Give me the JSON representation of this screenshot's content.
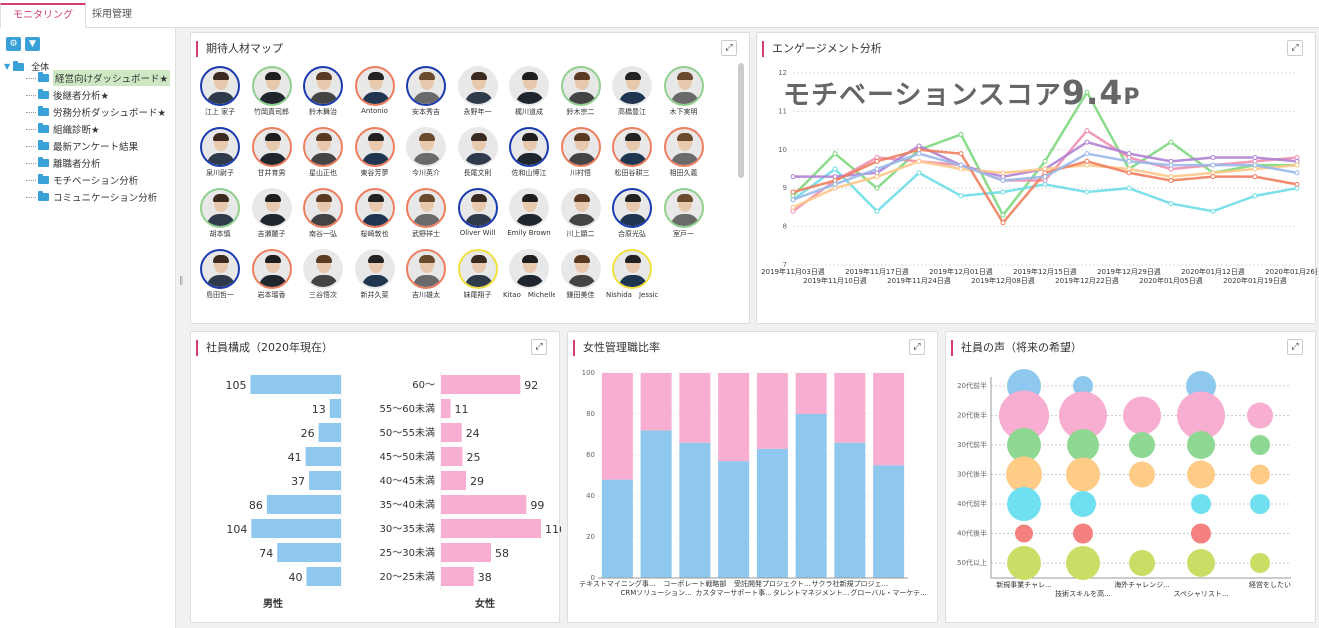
{
  "tabs": [
    "モニタリング",
    "採用管理"
  ],
  "toolbar": {
    "settings_icon": "gear-icon",
    "filter_icon": "filter-icon"
  },
  "tree": {
    "root": "全体",
    "items": [
      "経営向けダッシュボード★",
      "後継者分析★",
      "労務分析ダッシュボード★",
      "組織診断★",
      "最新アンケート結果",
      "離職者分析",
      "モチベーション分析",
      "コミュニケーション分析"
    ]
  },
  "talent_map": {
    "title": "期待人材マップ",
    "people": [
      {
        "name": "江上 家子",
        "ring": "#1a3ab0"
      },
      {
        "name": "竹岡真司郎",
        "ring": "#8fd08f"
      },
      {
        "name": "鈴木舞治",
        "ring": "#1a3ab0"
      },
      {
        "name": "Antonio",
        "ring": "#ee7e5e"
      },
      {
        "name": "安本秀吉",
        "ring": "#1a3ab0"
      },
      {
        "name": "永野年一",
        "ring": "#ffffff"
      },
      {
        "name": "梶川道成",
        "ring": "#ffffff"
      },
      {
        "name": "鈴木宗二",
        "ring": "#8fd08f"
      },
      {
        "name": "高橋豊江",
        "ring": "#ffffff"
      },
      {
        "name": "木下実明",
        "ring": "#8fd08f"
      },
      {
        "name": "泉川尉子",
        "ring": "#1a3ab0"
      },
      {
        "name": "甘井育男",
        "ring": "#ee7e5e"
      },
      {
        "name": "星山正也",
        "ring": "#ee7e5e"
      },
      {
        "name": "東谷芳夢",
        "ring": "#ee7e5e"
      },
      {
        "name": "今川英介",
        "ring": "#ffffff"
      },
      {
        "name": "長尾文則",
        "ring": "#ffffff"
      },
      {
        "name": "佐和山博江",
        "ring": "#1a3ab0"
      },
      {
        "name": "川村悟",
        "ring": "#ee7e5e"
      },
      {
        "name": "松田谷耕三",
        "ring": "#ee7e5e"
      },
      {
        "name": "相田久義",
        "ring": "#ee7e5e"
      },
      {
        "name": "胡本慎",
        "ring": "#8fd08f"
      },
      {
        "name": "吉瀬麓子",
        "ring": "#ffffff"
      },
      {
        "name": "南谷一弘",
        "ring": "#ee7e5e"
      },
      {
        "name": "桜崎敦也",
        "ring": "#ee7e5e"
      },
      {
        "name": "武野祥士",
        "ring": "#ee7e5e"
      },
      {
        "name": "Oliver Will",
        "ring": "#1a3ab0"
      },
      {
        "name": "Emily Brown",
        "ring": "#ffffff"
      },
      {
        "name": "川上顕二",
        "ring": "#ffffff"
      },
      {
        "name": "合原光弘",
        "ring": "#1a3ab0"
      },
      {
        "name": "室戸一",
        "ring": "#8fd08f"
      },
      {
        "name": "島田哲一",
        "ring": "#1a3ab0"
      },
      {
        "name": "岩本瑠香",
        "ring": "#ee7e5e"
      },
      {
        "name": "三谷悟次",
        "ring": "#ffffff"
      },
      {
        "name": "新井久菜",
        "ring": "#ffffff"
      },
      {
        "name": "吉川雄太",
        "ring": "#ee7e5e"
      },
      {
        "name": "妹尾翔子",
        "ring": "#f0e040"
      },
      {
        "name": "Kitao　Michelle",
        "ring": "#ffffff"
      },
      {
        "name": "鎌田美佳",
        "ring": "#ffffff"
      },
      {
        "name": "Nishida　Jessica",
        "ring": "#f0e040"
      }
    ]
  },
  "engagement": {
    "title": "エンゲージメント分析",
    "score_label": "モチベーションスコア",
    "score_value": "9.4",
    "score_unit": "P"
  },
  "composition": {
    "title": "社員構成（2020年現在）",
    "male_label": "男性",
    "female_label": "女性"
  },
  "female_mgmt": {
    "title": "女性管理職比率"
  },
  "voices": {
    "title": "社員の声（将来の希望）"
  },
  "chart_data": [
    {
      "type": "line",
      "title": "エンゲージメント分析",
      "x": [
        "2019年11月03日週",
        "2019年11月10日週",
        "2019年11月17日週",
        "2019年11月24日週",
        "2019年12月01日週",
        "2019年12月08日週",
        "2019年12月15日週",
        "2019年12月22日週",
        "2019年12月29日週",
        "2020年01月05日週",
        "2020年01月12日週",
        "2020年01月19日週",
        "2020年01月26日週"
      ],
      "ylim": [
        7,
        12
      ],
      "yticks": [
        7,
        8,
        9,
        10,
        11,
        12
      ],
      "series": [
        {
          "color": "#7dd87d",
          "values": [
            8.8,
            9.9,
            9.0,
            10.0,
            10.4,
            8.3,
            9.7,
            11.5,
            9.5,
            10.2,
            9.4,
            9.6,
            9.6
          ]
        },
        {
          "color": "#f08fb0",
          "values": [
            8.4,
            9.2,
            9.8,
            9.7,
            9.6,
            9.2,
            9.2,
            10.5,
            9.8,
            9.5,
            9.6,
            9.7,
            9.8
          ]
        },
        {
          "color": "#6edde8",
          "values": [
            8.7,
            9.5,
            8.4,
            9.4,
            8.8,
            8.9,
            9.1,
            8.9,
            9.0,
            8.6,
            8.4,
            8.8,
            9.0
          ]
        },
        {
          "color": "#b082d4",
          "values": [
            9.3,
            9.3,
            9.4,
            10.1,
            9.6,
            9.3,
            9.5,
            10.2,
            9.9,
            9.7,
            9.8,
            9.8,
            9.7
          ]
        },
        {
          "color": "#ffc888",
          "values": [
            8.5,
            9.0,
            9.3,
            9.7,
            9.5,
            9.4,
            9.5,
            9.6,
            9.5,
            9.3,
            9.4,
            9.5,
            9.6
          ]
        },
        {
          "color": "#ee7e5e",
          "values": [
            8.9,
            9.2,
            9.7,
            10.0,
            9.9,
            8.1,
            9.4,
            9.7,
            9.4,
            9.2,
            9.3,
            9.3,
            9.1
          ]
        },
        {
          "color": "#9ab8e8",
          "values": [
            8.7,
            9.1,
            9.5,
            9.9,
            9.6,
            9.2,
            9.3,
            9.9,
            9.7,
            9.6,
            9.6,
            9.6,
            9.4
          ]
        }
      ]
    },
    {
      "type": "bar",
      "title": "社員構成（2020年現在）",
      "categories": [
        "60～",
        "55～60未満",
        "50～55未満",
        "45～50未満",
        "40～45未満",
        "35～40未満",
        "30～35未満",
        "25～30未満",
        "20～25未満"
      ],
      "series": [
        {
          "name": "男性",
          "color": "#8ec8ee",
          "values": [
            105,
            13,
            26,
            41,
            37,
            86,
            104,
            74,
            40
          ]
        },
        {
          "name": "女性",
          "color": "#f7aed0",
          "values": [
            92,
            11,
            24,
            25,
            29,
            99,
            116,
            58,
            38
          ]
        }
      ]
    },
    {
      "type": "bar",
      "title": "女性管理職比率",
      "ylim": [
        0,
        100
      ],
      "yticks": [
        0,
        20,
        40,
        60,
        80,
        100
      ],
      "categories": [
        "テキストマイニング事...",
        "CRMソリューション...",
        "コーポレート戦略部",
        "カスタマーサポート事...",
        "受託開発プロジェクト...",
        "タレントマネジメント...",
        "サクラ社新規プロジェ...",
        "グローバル・マーケテ..."
      ],
      "series": [
        {
          "color": "#8ec8ee",
          "values": [
            48,
            72,
            66,
            57,
            63,
            80,
            66,
            55
          ]
        },
        {
          "color": "#f7aed0",
          "values": [
            52,
            28,
            34,
            43,
            37,
            20,
            34,
            45
          ]
        }
      ]
    },
    {
      "type": "scatter",
      "title": "社員の声（将来の希望）",
      "yticks": [
        "20代前半",
        "20代後半",
        "30代前半",
        "30代後半",
        "40代前半",
        "40代後半",
        "50代以上"
      ],
      "xcats": [
        "新規事業チャレ...",
        "技術スキルを高...",
        "海外チャレンジ...",
        "スペシャリスト...",
        "経営をしたい"
      ],
      "rows": [
        {
          "color": "#8ec8ee",
          "sizes": [
            17,
            10,
            0,
            15,
            0
          ]
        },
        {
          "color": "#f7aed0",
          "sizes": [
            25,
            24,
            19,
            24,
            13
          ]
        },
        {
          "color": "#8fd893",
          "sizes": [
            17,
            16,
            13,
            14,
            10
          ]
        },
        {
          "color": "#ffcc88",
          "sizes": [
            18,
            17,
            13,
            14,
            10
          ]
        },
        {
          "color": "#6ee0f0",
          "sizes": [
            17,
            13,
            0,
            10,
            10
          ]
        },
        {
          "color": "#f48080",
          "sizes": [
            9,
            10,
            0,
            10,
            0
          ]
        },
        {
          "color": "#ccdd66",
          "sizes": [
            17,
            17,
            13,
            14,
            10
          ]
        }
      ]
    }
  ]
}
